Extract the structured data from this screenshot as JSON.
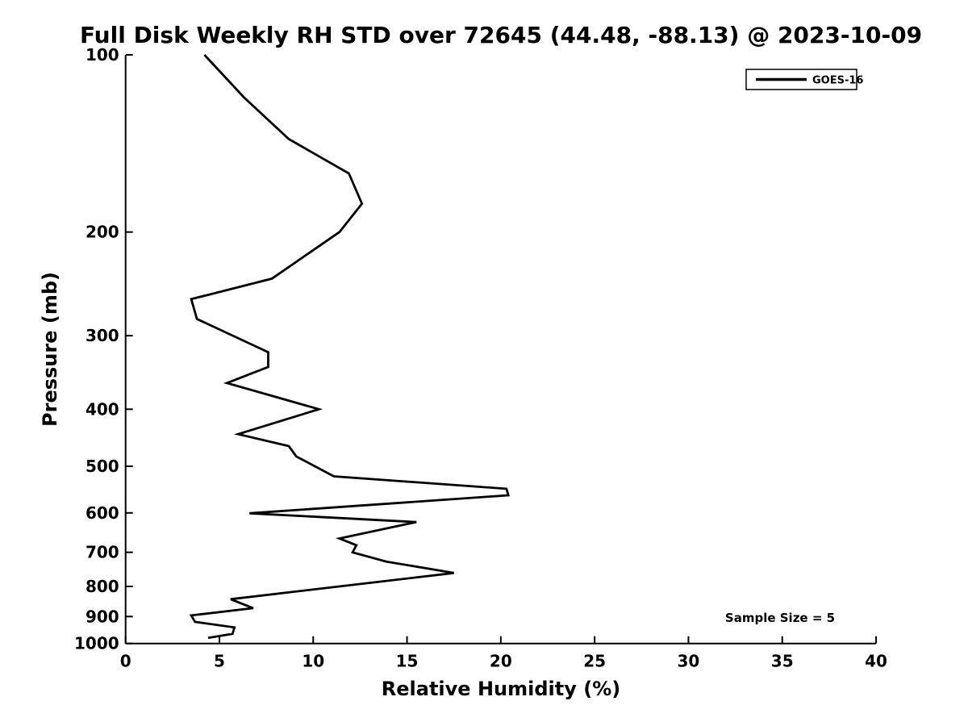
{
  "title": "Full Disk Weekly RH STD over 72645 (44.48, -88.13) @ 2023-10-09",
  "x_axis": {
    "label": "Relative Humidity (%)",
    "ticks": [
      0,
      5,
      10,
      15,
      20,
      25,
      30,
      35,
      40
    ]
  },
  "y_axis": {
    "label": "Pressure (mb)",
    "ticks": [
      100,
      200,
      300,
      400,
      500,
      600,
      700,
      800,
      900,
      1000
    ]
  },
  "legend": {
    "entries": [
      {
        "label": "GOES-16",
        "color": "#000000"
      }
    ]
  },
  "annotation": {
    "text": "Sample Size = 5"
  },
  "colors": {
    "line": "#000000",
    "background": "#ffffff",
    "text": "#000000"
  },
  "chart_data": {
    "type": "line",
    "title": "Full Disk Weekly RH STD over 72645 (44.48, -88.13) @ 2023-10-09",
    "xlabel": "Relative Humidity (%)",
    "ylabel": "Pressure (mb)",
    "xlim": [
      0,
      40
    ],
    "ylim": [
      100,
      1000
    ],
    "x_ticks": [
      0,
      5,
      10,
      15,
      20,
      25,
      30,
      35,
      40
    ],
    "y_ticks": [
      100,
      200,
      300,
      400,
      500,
      600,
      700,
      800,
      900,
      1000
    ],
    "y_scale": "log",
    "y_inverted": true,
    "grid": false,
    "legend_position": "upper right",
    "series": [
      {
        "name": "GOES-16",
        "color": "#000000",
        "points_format": "[relative_humidity_std_percent, pressure_mb]",
        "points": [
          [
            4.2,
            100
          ],
          [
            6.3,
            118
          ],
          [
            8.7,
            139
          ],
          [
            11.9,
            159
          ],
          [
            12.6,
            179
          ],
          [
            11.4,
            200
          ],
          [
            7.8,
            240
          ],
          [
            3.5,
            260
          ],
          [
            3.8,
            281
          ],
          [
            7.6,
            320
          ],
          [
            7.6,
            339
          ],
          [
            5.4,
            361
          ],
          [
            10.3,
            400
          ],
          [
            6.0,
            441
          ],
          [
            8.7,
            462
          ],
          [
            9.1,
            481
          ],
          [
            11.1,
            520
          ],
          [
            20.3,
            546
          ],
          [
            20.4,
            560
          ],
          [
            6.6,
            601
          ],
          [
            15.5,
            622
          ],
          [
            11.4,
            663
          ],
          [
            12.3,
            681
          ],
          [
            12.1,
            700
          ],
          [
            13.9,
            726
          ],
          [
            17.5,
            759
          ],
          [
            5.6,
            841
          ],
          [
            6.8,
            871
          ],
          [
            3.5,
            896
          ],
          [
            3.7,
            919
          ],
          [
            5.8,
            939
          ],
          [
            5.7,
            963
          ],
          [
            4.4,
            978
          ]
        ]
      }
    ],
    "annotations": [
      {
        "text": "Sample Size = 5",
        "x": 35,
        "y": 900
      }
    ]
  }
}
